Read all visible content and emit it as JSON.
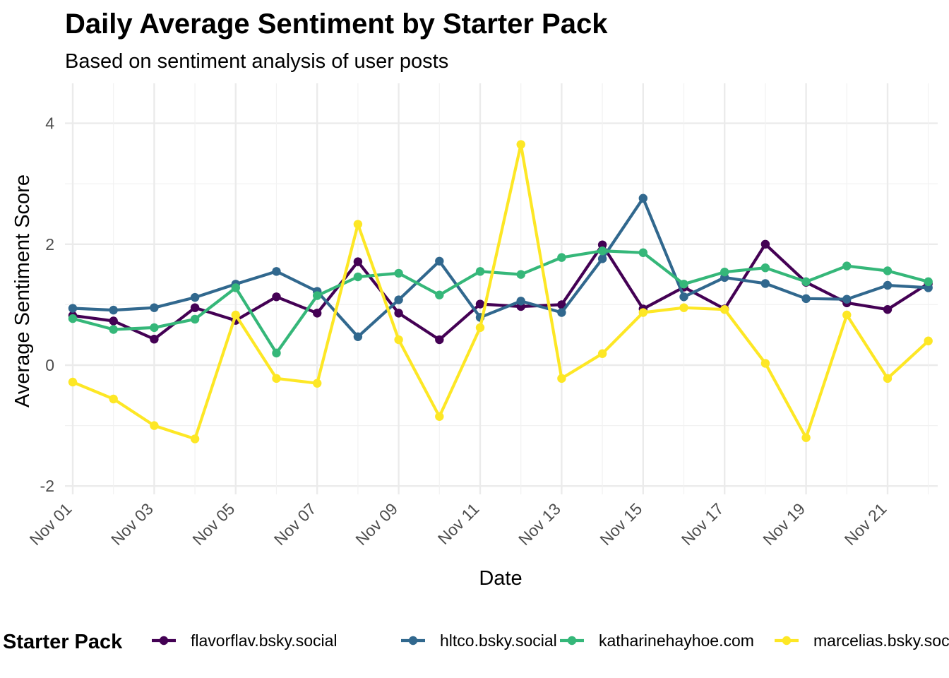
{
  "chart_data": {
    "type": "line",
    "title": "Daily Average Sentiment by Starter Pack",
    "subtitle": "Based on sentiment analysis of user posts",
    "xlabel": "Date",
    "ylabel": "Average Sentiment Score",
    "x": [
      "Nov 01",
      "Nov 02",
      "Nov 03",
      "Nov 04",
      "Nov 05",
      "Nov 06",
      "Nov 07",
      "Nov 08",
      "Nov 09",
      "Nov 10",
      "Nov 11",
      "Nov 12",
      "Nov 13",
      "Nov 14",
      "Nov 15",
      "Nov 16",
      "Nov 17",
      "Nov 18",
      "Nov 19",
      "Nov 20",
      "Nov 21",
      "Nov 22"
    ],
    "x_tick_labels": [
      "Nov 01",
      "Nov 03",
      "Nov 05",
      "Nov 07",
      "Nov 09",
      "Nov 11",
      "Nov 13",
      "Nov 15",
      "Nov 17",
      "Nov 19",
      "Nov 21"
    ],
    "y_ticks": [
      -2,
      0,
      2,
      4
    ],
    "ylim": [
      -2.2,
      4.7
    ],
    "grid": true,
    "legend": {
      "title": "Starter Pack",
      "position": "bottom"
    },
    "series": [
      {
        "name": "flavorflav.bsky.social",
        "color": "#440154",
        "values": [
          0.82,
          0.73,
          0.43,
          0.95,
          0.74,
          1.13,
          0.86,
          1.71,
          0.86,
          0.42,
          1.01,
          0.97,
          1.0,
          1.99,
          0.93,
          1.29,
          0.93,
          2.0,
          1.37,
          1.03,
          0.92,
          1.35
        ]
      },
      {
        "name": "hltco.bsky.social",
        "color": "#31688E",
        "values": [
          0.94,
          0.91,
          0.95,
          1.12,
          1.34,
          1.55,
          1.22,
          0.47,
          1.08,
          1.72,
          0.79,
          1.06,
          0.87,
          1.76,
          2.76,
          1.13,
          1.45,
          1.35,
          1.1,
          1.09,
          1.32,
          1.28
        ]
      },
      {
        "name": "katharinehayhoe.com",
        "color": "#35B779",
        "values": [
          0.77,
          0.59,
          0.62,
          0.76,
          1.28,
          0.2,
          1.15,
          1.46,
          1.52,
          1.16,
          1.55,
          1.5,
          1.78,
          1.89,
          1.86,
          1.34,
          1.54,
          1.61,
          1.38,
          1.64,
          1.56,
          1.38
        ]
      },
      {
        "name": "marcelias.bsky.social",
        "color": "#FDE725",
        "values": [
          -0.28,
          -0.56,
          -1.0,
          -1.22,
          0.83,
          -0.22,
          -0.3,
          2.33,
          0.42,
          -0.85,
          0.62,
          3.65,
          -0.22,
          0.19,
          0.87,
          0.95,
          0.92,
          0.03,
          -1.2,
          0.83,
          -0.22,
          0.4
        ]
      }
    ]
  }
}
